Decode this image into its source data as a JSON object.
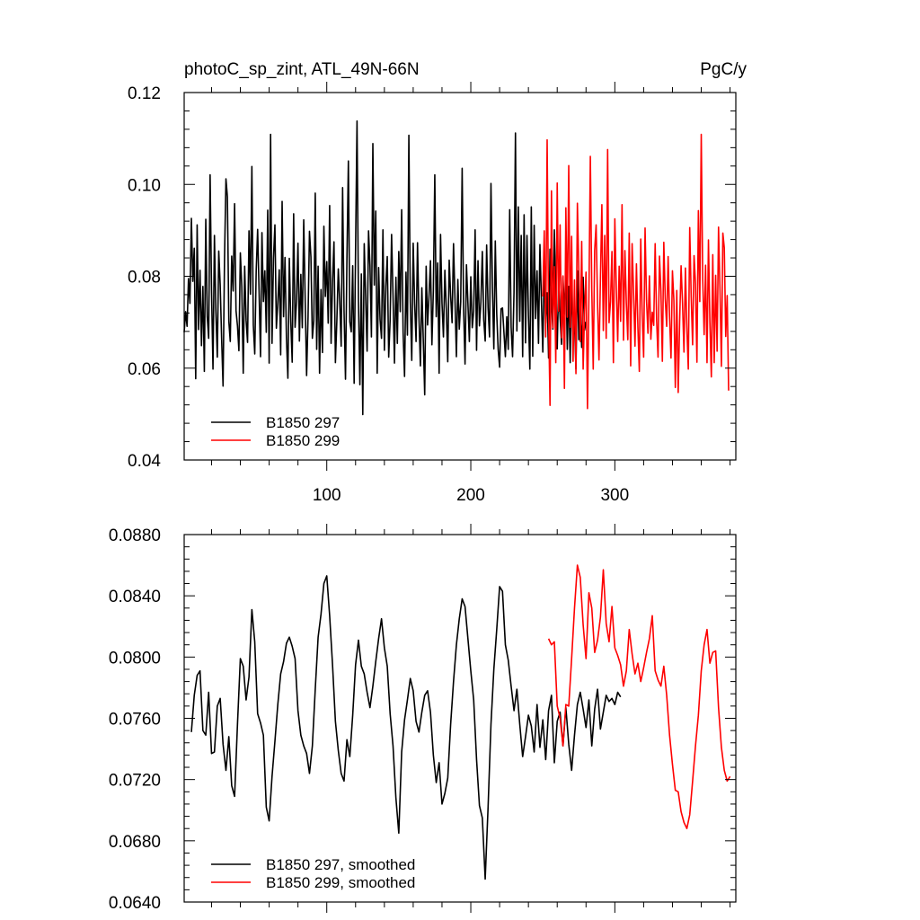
{
  "chart_data": [
    {
      "type": "line",
      "title": "photoC_sp_zint, ATL_49N-66N",
      "units": "PgC/y",
      "xlim": [
        1,
        384
      ],
      "ylim": [
        0.04,
        0.12
      ],
      "xticks": [
        100,
        200,
        300
      ],
      "xtick_labels": [
        "100",
        "200",
        "300"
      ],
      "yticks": [
        0.04,
        0.06,
        0.08,
        0.1,
        0.12
      ],
      "ytick_labels": [
        "0.04",
        "0.06",
        "0.08",
        "0.10",
        "0.12"
      ],
      "legend": [
        "B1850 297",
        "B1850 299"
      ],
      "series": [
        {
          "name": "B1850 297",
          "color": "#000000",
          "x_start": 1,
          "values": [
            0.0678,
            0.0723,
            0.0691,
            0.0795,
            0.0741,
            0.0926,
            0.0789,
            0.0861,
            0.0577,
            0.0912,
            0.0684,
            0.0813,
            0.0649,
            0.0778,
            0.0593,
            0.0924,
            0.0712,
            0.0665,
            0.1021,
            0.0768,
            0.0598,
            0.0889,
            0.0724,
            0.0624,
            0.0855,
            0.0781,
            0.0665,
            0.0561,
            0.0837,
            0.1012,
            0.0973,
            0.0702,
            0.0658,
            0.0844,
            0.0768,
            0.0958,
            0.0725,
            0.0692,
            0.0638,
            0.0851,
            0.0777,
            0.0589,
            0.0822,
            0.0704,
            0.0656,
            0.0899,
            0.0761,
            0.1039,
            0.0694,
            0.0631,
            0.0812,
            0.0902,
            0.0769,
            0.0625,
            0.0895,
            0.0745,
            0.0812,
            0.0678,
            0.0944,
            0.0611,
            0.1109,
            0.0654,
            0.0839,
            0.0912,
            0.0687,
            0.0741,
            0.0814,
            0.0629,
            0.0963,
            0.0712,
            0.0841,
            0.0666,
            0.0578,
            0.0839,
            0.0702,
            0.0613,
            0.0936,
            0.0689,
            0.0745,
            0.0872,
            0.0659,
            0.0804,
            0.0688,
            0.0923,
            0.0751,
            0.0584,
            0.0711,
            0.0898,
            0.0842,
            0.0665,
            0.0703,
            0.0981,
            0.0641,
            0.0822,
            0.0589,
            0.0771,
            0.0634,
            0.0909,
            0.0756,
            0.0832,
            0.0698,
            0.0954,
            0.0654,
            0.0788,
            0.0875,
            0.0612,
            0.0703,
            0.0816,
            0.0745,
            0.0648,
            0.0993,
            0.0725,
            0.0576,
            0.0837,
            0.1051,
            0.0701,
            0.0679,
            0.0823,
            0.0567,
            0.0859,
            0.1138,
            0.0746,
            0.0564,
            0.0805,
            0.0499,
            0.0871,
            0.0756,
            0.0637,
            0.0899,
            0.0824,
            0.0668,
            0.1089,
            0.0781,
            0.0942,
            0.0589,
            0.0819,
            0.0706,
            0.0665,
            0.0901,
            0.0639,
            0.0778,
            0.0843,
            0.0624,
            0.0705,
            0.0891,
            0.0758,
            0.0611,
            0.0798,
            0.0654,
            0.0854,
            0.0723,
            0.0945,
            0.0678,
            0.0582,
            0.0809,
            0.0672,
            0.1107,
            0.0745,
            0.0617,
            0.0872,
            0.0741,
            0.0658,
            0.0873,
            0.0712,
            0.0605,
            0.0775,
            0.0663,
            0.0542,
            0.0822,
            0.0694,
            0.0758,
            0.0834,
            0.0651,
            0.0769,
            0.1021,
            0.0712,
            0.0829,
            0.0589,
            0.0891,
            0.0742,
            0.0668,
            0.0813,
            0.0729,
            0.0614,
            0.0835,
            0.0758,
            0.0699,
            0.0871,
            0.0752,
            0.0625,
            0.0793,
            0.0685,
            0.0744,
            0.1035,
            0.0731,
            0.0609,
            0.0825,
            0.0742,
            0.0658,
            0.0799,
            0.0688,
            0.0724,
            0.0901,
            0.0639,
            0.0834,
            0.0692,
            0.0744,
            0.0854,
            0.0705,
            0.0659,
            0.0868,
            0.0731,
            0.0668,
            0.1002,
            0.0775,
            0.0642,
            0.0877,
            0.0718,
            0.0641,
            0.0602,
            0.0729,
            0.0731,
            0.0678,
            0.0625,
            0.0712,
            0.0641,
            0.0945,
            0.0689,
            0.0625,
            0.0765,
            0.1112,
            0.0681,
            0.0951,
            0.0702,
            0.0889,
            0.0625,
            0.0934,
            0.0655,
            0.0889,
            0.0714,
            0.0598,
            0.0951,
            0.0626,
            0.0911,
            0.0708,
            0.0812,
            0.0654,
            0.0869,
            0.0751,
            0.0635,
            0.0818,
            0.0698,
            0.0764,
            0.0622,
            0.0859,
            0.0741,
            0.0685,
            0.0901,
            0.0768,
            0.0642,
            0.0789,
            0.0711,
            0.0652,
            0.0798,
            0.0718,
            0.0814,
            0.0641,
            0.0778,
            0.0612,
            0.0795,
            0.0665,
            0.0701,
            0.0598,
            0.0812,
            0.0662,
            0.0711,
            0.0645,
            0.0798,
            0.0683,
            0.0701
          ]
        },
        {
          "name": "B1850 299",
          "color": "#ff0000",
          "x_start": 250,
          "values": [
            0.0756,
            0.0899,
            0.0668,
            0.1097,
            0.0715,
            0.0519,
            0.0986,
            0.0688,
            0.0821,
            0.0612,
            0.1003,
            0.0724,
            0.0912,
            0.0666,
            0.0801,
            0.0556,
            0.0949,
            0.0711,
            0.1041,
            0.0689,
            0.0887,
            0.0615,
            0.0792,
            0.0588,
            0.0959,
            0.0812,
            0.0658,
            0.0876,
            0.0598,
            0.0724,
            0.0809,
            0.0512,
            0.0756,
            0.1061,
            0.0772,
            0.0598,
            0.0856,
            0.0912,
            0.0741,
            0.0618,
            0.0796,
            0.0956,
            0.0682,
            0.0889,
            0.0665,
            0.1076,
            0.0699,
            0.0745,
            0.0854,
            0.0612,
            0.0925,
            0.0774,
            0.0658,
            0.0822,
            0.0702,
            0.0956,
            0.0661,
            0.0856,
            0.0741,
            0.0662,
            0.0894,
            0.0605,
            0.0871,
            0.0764,
            0.0648,
            0.0827,
            0.0691,
            0.0593,
            0.0881,
            0.0715,
            0.0624,
            0.0905,
            0.0748,
            0.0676,
            0.0801,
            0.0663,
            0.0722,
            0.0693,
            0.0871,
            0.0706,
            0.0624,
            0.0844,
            0.0768,
            0.0615,
            0.0874,
            0.0752,
            0.0691,
            0.0843,
            0.0711,
            0.0622,
            0.0812,
            0.0747,
            0.0558,
            0.0769,
            0.0547,
            0.0702,
            0.0823,
            0.0742,
            0.0635,
            0.0818,
            0.0689,
            0.0598,
            0.0906,
            0.0758,
            0.0651,
            0.0845,
            0.0784,
            0.0613,
            0.0943,
            0.0745,
            0.1109,
            0.0795,
            0.0673,
            0.0824,
            0.0612,
            0.0879,
            0.0701,
            0.0581,
            0.0847,
            0.0612,
            0.0802,
            0.0637,
            0.0907,
            0.0771,
            0.0604,
            0.0894,
            0.0862,
            0.0669,
            0.0758,
            0.0551
          ]
        }
      ]
    },
    {
      "type": "line",
      "title": "",
      "xlim": [
        1,
        384
      ],
      "ylim": [
        0.064,
        0.088
      ],
      "xticks": [
        100,
        200,
        300
      ],
      "yticks": [
        0.064,
        0.068,
        0.072,
        0.076,
        0.08,
        0.084,
        0.088
      ],
      "ytick_labels": [
        "0.0640",
        "0.0680",
        "0.0720",
        "0.0760",
        "0.0800",
        "0.0840",
        "0.0880"
      ],
      "legend": [
        "B1850 297, smoothed",
        "B1850 299, smoothed"
      ],
      "series": [
        {
          "name": "B1850 297, smoothed",
          "color": "#000000",
          "x": [
            6,
            8,
            10,
            12,
            14,
            16,
            18,
            20,
            22,
            24,
            26,
            28,
            30,
            32,
            34,
            36,
            38,
            40,
            42,
            44,
            46,
            48,
            50,
            52,
            54,
            56,
            58,
            60,
            62,
            64,
            66,
            68,
            70,
            72,
            74,
            76,
            78,
            80,
            82,
            84,
            86,
            88,
            90,
            92,
            94,
            96,
            98,
            100,
            102,
            104,
            106,
            108,
            110,
            112,
            114,
            116,
            118,
            120,
            122,
            124,
            126,
            128,
            130,
            132,
            134,
            136,
            138,
            140,
            142,
            144,
            146,
            148,
            150,
            152,
            154,
            156,
            158,
            160,
            162,
            164,
            166,
            168,
            170,
            172,
            174,
            176,
            178,
            180,
            182,
            184,
            186,
            188,
            190,
            192,
            194,
            196,
            198,
            200,
            202,
            204,
            206,
            208,
            210,
            212,
            214,
            216,
            218,
            220,
            222,
            224,
            226,
            228,
            230,
            232,
            234,
            236,
            238,
            240,
            242,
            244,
            246,
            248,
            250,
            252,
            254,
            256,
            258,
            260,
            262,
            264,
            266,
            268,
            270,
            272,
            274,
            276,
            278,
            280,
            282,
            284,
            286,
            288,
            290,
            292,
            294,
            296,
            298,
            300,
            302,
            304
          ],
          "values": [
            0.0751,
            0.0775,
            0.0788,
            0.0791,
            0.0752,
            0.0749,
            0.0777,
            0.0737,
            0.0738,
            0.0768,
            0.0773,
            0.0743,
            0.0726,
            0.0748,
            0.0716,
            0.0709,
            0.0756,
            0.0799,
            0.0794,
            0.0772,
            0.0787,
            0.0831,
            0.081,
            0.0763,
            0.0757,
            0.0749,
            0.0702,
            0.0693,
            0.0722,
            0.0745,
            0.0769,
            0.0789,
            0.0797,
            0.0809,
            0.0813,
            0.0807,
            0.0799,
            0.0765,
            0.0749,
            0.0742,
            0.0737,
            0.0724,
            0.0742,
            0.0779,
            0.0813,
            0.0828,
            0.0848,
            0.0853,
            0.0827,
            0.0795,
            0.0758,
            0.0739,
            0.0724,
            0.0719,
            0.0746,
            0.0735,
            0.0762,
            0.0795,
            0.0811,
            0.0794,
            0.0789,
            0.0777,
            0.0767,
            0.0781,
            0.0797,
            0.0812,
            0.0825,
            0.0806,
            0.0794,
            0.0763,
            0.0742,
            0.0708,
            0.0685,
            0.0738,
            0.0759,
            0.0772,
            0.0786,
            0.0778,
            0.0758,
            0.0751,
            0.0764,
            0.0775,
            0.0778,
            0.0764,
            0.0736,
            0.0718,
            0.0731,
            0.0704,
            0.0711,
            0.0721,
            0.0756,
            0.0784,
            0.0808,
            0.0825,
            0.0838,
            0.0833,
            0.0812,
            0.0791,
            0.0772,
            0.0733,
            0.0703,
            0.0695,
            0.0655,
            0.0702,
            0.0756,
            0.0792,
            0.0818,
            0.0846,
            0.0843,
            0.0808,
            0.0798,
            0.0781,
            0.0765,
            0.0779,
            0.0756,
            0.0735,
            0.0748,
            0.0762,
            0.0755,
            0.0738,
            0.0769,
            0.0741,
            0.0759,
            0.0733,
            0.0765,
            0.0775,
            0.0731,
            0.0758,
            0.0764,
            0.0742,
            0.0767,
            0.0743,
            0.0726,
            0.0749,
            0.0769,
            0.0777,
            0.0766,
            0.0754,
            0.0772,
            0.0742,
            0.0766,
            0.0779,
            0.0753,
            0.0764,
            0.0775,
            0.0771,
            0.0773,
            0.0769,
            0.0777,
            0.0774
          ]
        },
        {
          "name": "B1850 299, smoothed",
          "color": "#ff0000",
          "x": [
            254,
            256,
            258,
            260,
            262,
            264,
            266,
            268,
            270,
            272,
            274,
            276,
            278,
            280,
            282,
            284,
            286,
            288,
            290,
            292,
            294,
            296,
            298,
            300,
            302,
            304,
            306,
            308,
            310,
            312,
            314,
            316,
            318,
            320,
            322,
            324,
            326,
            328,
            330,
            332,
            334,
            336,
            338,
            340,
            342,
            344,
            346,
            348,
            350,
            352,
            354,
            356,
            358,
            360,
            362,
            364,
            366,
            368,
            370,
            372,
            374,
            376,
            378,
            380
          ],
          "values": [
            0.0812,
            0.0808,
            0.081,
            0.0768,
            0.076,
            0.0742,
            0.0769,
            0.0768,
            0.0799,
            0.0832,
            0.086,
            0.0852,
            0.0821,
            0.0799,
            0.0842,
            0.0832,
            0.0803,
            0.0811,
            0.0826,
            0.0857,
            0.0822,
            0.081,
            0.0833,
            0.0806,
            0.0801,
            0.0795,
            0.0781,
            0.0791,
            0.0818,
            0.0802,
            0.0789,
            0.0796,
            0.0784,
            0.0793,
            0.0803,
            0.0812,
            0.0827,
            0.0791,
            0.0785,
            0.0781,
            0.0794,
            0.0775,
            0.0749,
            0.073,
            0.0713,
            0.0712,
            0.0699,
            0.0692,
            0.0688,
            0.0697,
            0.0719,
            0.0742,
            0.0762,
            0.0791,
            0.0808,
            0.0818,
            0.0796,
            0.0803,
            0.0804,
            0.0767,
            0.0741,
            0.0726,
            0.0719,
            0.0722
          ]
        }
      ]
    }
  ]
}
